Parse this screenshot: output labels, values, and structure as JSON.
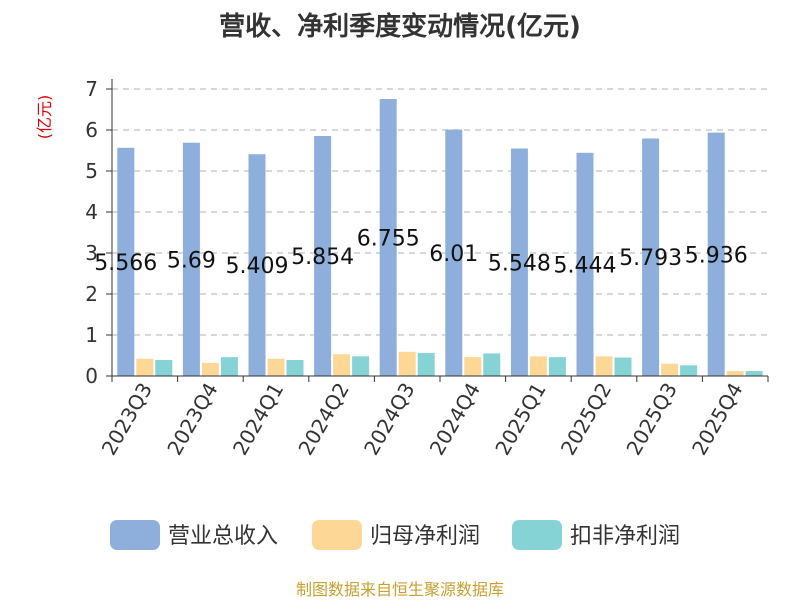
{
  "chart_data": {
    "type": "bar",
    "title": "营收、净利季度变动情况(亿元)",
    "ylabel": "(亿元)",
    "xlabel": "",
    "categories": [
      "2023Q3",
      "2023Q4",
      "2024Q1",
      "2024Q2",
      "2024Q3",
      "2024Q4",
      "2025Q1",
      "2025Q2",
      "2025Q3",
      "2025Q4"
    ],
    "ylim": [
      0,
      7
    ],
    "yticks": [
      "0",
      "1",
      "2",
      "3",
      "4",
      "5",
      "6",
      "7"
    ],
    "grid": true,
    "legend_position": "bottom",
    "series": [
      {
        "name": "营业总收入",
        "color": "#8eaedb",
        "values": [
          5.566,
          5.69,
          5.409,
          5.854,
          6.755,
          6.01,
          5.548,
          5.444,
          5.793,
          5.936
        ],
        "labels": [
          "5.566",
          "5.69",
          "5.409",
          "5.854",
          "6.755",
          "6.01",
          "5.548",
          "5.444",
          "5.793",
          "5.936"
        ]
      },
      {
        "name": "归母净利润",
        "color": "#fdd795",
        "values": [
          0.42,
          0.32,
          0.42,
          0.53,
          0.59,
          0.46,
          0.48,
          0.48,
          0.3,
          0.12
        ]
      },
      {
        "name": "扣非净利润",
        "color": "#86d3d6",
        "values": [
          0.39,
          0.46,
          0.39,
          0.48,
          0.56,
          0.55,
          0.46,
          0.45,
          0.26,
          0.12
        ]
      }
    ],
    "source": "制图数据来自恒生聚源数据库"
  },
  "colors": {
    "title": "#333333",
    "unit": "#e00000",
    "axis": "#333333",
    "grid": "#cccccc",
    "source": "#c8a030"
  }
}
